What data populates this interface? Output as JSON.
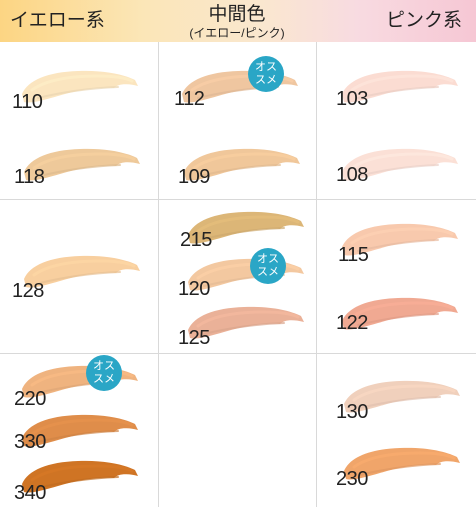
{
  "headers": {
    "yellow": "イエロー系",
    "mid_title": "中間色",
    "mid_sub": "(イエロー/ピンク)",
    "pink": "ピンク系"
  },
  "badge": {
    "line1": "オス",
    "line2": "スメ"
  },
  "shades": [
    {
      "code": "110",
      "color": "#fbe5bf",
      "recommended": false
    },
    {
      "code": "118",
      "color": "#eec99a",
      "recommended": false
    },
    {
      "code": "112",
      "color": "#efc6a0",
      "recommended": true
    },
    {
      "code": "109",
      "color": "#f0c79a",
      "recommended": false
    },
    {
      "code": "103",
      "color": "#fbdcd2",
      "recommended": false
    },
    {
      "code": "108",
      "color": "#fbe0d6",
      "recommended": false
    },
    {
      "code": "128",
      "color": "#f8cf9f",
      "recommended": false
    },
    {
      "code": "215",
      "color": "#dcb677",
      "recommended": false
    },
    {
      "code": "120",
      "color": "#f3c8a0",
      "recommended": true
    },
    {
      "code": "125",
      "color": "#eab198",
      "recommended": false
    },
    {
      "code": "115",
      "color": "#f8c9ad",
      "recommended": false
    },
    {
      "code": "122",
      "color": "#f0a992",
      "recommended": false
    },
    {
      "code": "220",
      "color": "#efb37f",
      "recommended": true
    },
    {
      "code": "330",
      "color": "#df8d4a",
      "recommended": false
    },
    {
      "code": "340",
      "color": "#cf7424",
      "recommended": false
    },
    {
      "code": "130",
      "color": "#f0d0bc",
      "recommended": false
    },
    {
      "code": "230",
      "color": "#f0a56a",
      "recommended": false
    }
  ]
}
